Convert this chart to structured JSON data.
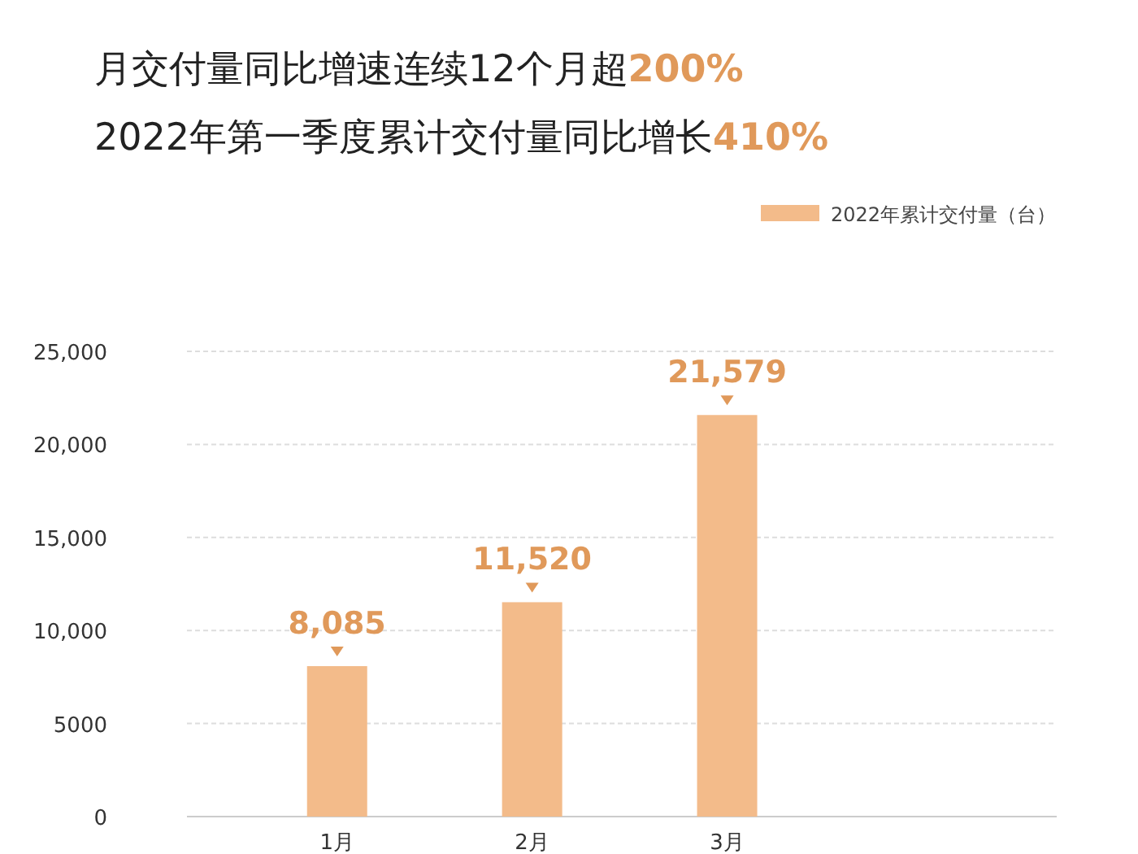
{
  "chart_data": {
    "type": "bar",
    "title": "月交付量同比增速连续12个月超**200%**",
    "subtitle": "2022年第一季度累计交付量同比增长**410%**",
    "categories": [
      "1月",
      "2月",
      "3月"
    ],
    "series": [
      {
        "name": "2022年累计交付量（台）",
        "color": "#f3bb8a",
        "values": [
          8085,
          11520,
          21579
        ],
        "value_labels": [
          "8,085",
          "11,520",
          "21,579"
        ]
      }
    ],
    "ylim": [
      0,
      25000
    ],
    "yticks": [
      0,
      5000,
      {
        "value": 10000,
        "label": "10,000"
      },
      {
        "value": 15000,
        "label": "15,000"
      },
      {
        "value": 20000,
        "label": "20,000"
      },
      {
        "value": 25000,
        "label": "25,000"
      }
    ],
    "grid": "y",
    "legend": "top right"
  }
}
